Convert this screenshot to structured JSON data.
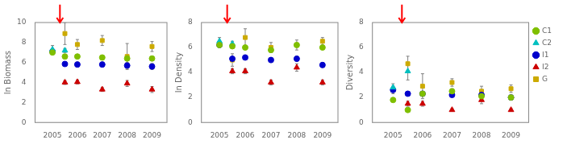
{
  "chart_data": [
    {
      "type": "scatter",
      "ylabel": "ln Biomass",
      "x": [
        2005,
        2005.5,
        2006,
        2007,
        2008,
        2009
      ],
      "xlim": [
        2004.3,
        2009.6
      ],
      "xticks": [
        2005,
        2006,
        2007,
        2008,
        2009
      ],
      "ylim": [
        0,
        10
      ],
      "yticks": [
        0,
        2,
        4,
        6,
        8,
        10
      ],
      "grid": false,
      "arrow": {
        "x": 2005.3,
        "color": "red"
      },
      "series": [
        {
          "name": "C1",
          "color": "#7fbf00",
          "marker": "circle",
          "values": [
            7.0,
            6.6,
            6.6,
            6.5,
            6.4,
            6.4
          ],
          "errors": [
            0.15,
            0.15,
            0.15,
            0.2,
            0.2,
            0.2
          ]
        },
        {
          "name": "C2",
          "color": "#00bfbf",
          "marker": "triangle",
          "values": [
            7.3,
            7.2,
            null,
            null,
            null,
            null
          ],
          "errors": [
            0.4,
            0.2,
            null,
            null,
            null,
            null
          ]
        },
        {
          "name": "I1",
          "color": "#0000cc",
          "marker": "circle",
          "values": [
            7.1,
            5.85,
            5.8,
            5.8,
            5.7,
            5.6
          ],
          "errors": [
            0.15,
            0.2,
            0.25,
            0.25,
            0.3,
            0.3
          ]
        },
        {
          "name": "I2",
          "color": "#cc0000",
          "marker": "triangle",
          "values": [
            null,
            4.0,
            4.05,
            3.3,
            3.9,
            3.3
          ],
          "errors": [
            null,
            0.2,
            0.2,
            0.2,
            0.3,
            0.3
          ]
        },
        {
          "name": "G",
          "color": "#ccaa00",
          "marker": "square",
          "values": [
            7.1,
            8.9,
            7.8,
            8.2,
            6.6,
            7.6
          ],
          "errors": [
            0.2,
            1.1,
            0.5,
            0.5,
            1.3,
            0.5
          ]
        }
      ]
    },
    {
      "type": "scatter",
      "ylabel": "ln Density",
      "x": [
        2005,
        2005.5,
        2006,
        2007,
        2008,
        2009
      ],
      "xlim": [
        2004.3,
        2009.6
      ],
      "xticks": [
        2005,
        2006,
        2007,
        2008,
        2009
      ],
      "ylim": [
        0,
        8
      ],
      "yticks": [
        0,
        2,
        4,
        6,
        8
      ],
      "grid": false,
      "arrow": {
        "x": 2005.3,
        "color": "red"
      },
      "series": [
        {
          "name": "C1",
          "color": "#7fbf00",
          "marker": "circle",
          "values": [
            6.2,
            6.1,
            6.0,
            5.8,
            6.2,
            6.0
          ],
          "errors": [
            0.15,
            0.15,
            0.15,
            0.15,
            0.15,
            0.15
          ]
        },
        {
          "name": "C2",
          "color": "#00bfbf",
          "marker": "triangle",
          "values": [
            6.5,
            6.3,
            null,
            null,
            null,
            null
          ],
          "errors": [
            0.3,
            0.2,
            null,
            null,
            null,
            null
          ]
        },
        {
          "name": "I1",
          "color": "#0000cc",
          "marker": "circle",
          "values": [
            6.2,
            5.1,
            5.2,
            5.0,
            5.1,
            4.6
          ],
          "errors": [
            0.15,
            0.15,
            0.2,
            0.2,
            0.2,
            0.2
          ]
        },
        {
          "name": "I2",
          "color": "#cc0000",
          "marker": "triangle",
          "values": [
            null,
            4.1,
            4.1,
            3.2,
            4.4,
            3.2
          ],
          "errors": [
            null,
            0.2,
            0.2,
            0.2,
            0.3,
            0.2
          ]
        },
        {
          "name": "G",
          "color": "#ccaa00",
          "marker": "square",
          "values": [
            6.3,
            5.0,
            6.8,
            6.0,
            6.2,
            6.5
          ],
          "errors": [
            0.15,
            0.5,
            0.7,
            0.4,
            0.4,
            0.3
          ]
        }
      ]
    },
    {
      "type": "scatter",
      "ylabel": "Diversity",
      "x": [
        2005,
        2005.5,
        2006,
        2007,
        2008,
        2009
      ],
      "xlim": [
        2004.3,
        2009.6
      ],
      "xticks": [
        2005,
        2006,
        2007,
        2008,
        2009
      ],
      "ylim": [
        0,
        8
      ],
      "yticks": [
        0,
        2,
        4,
        6,
        8
      ],
      "grid": false,
      "legend": "right",
      "arrow": {
        "x": 2005.3,
        "color": "red"
      },
      "series": [
        {
          "name": "C1",
          "color": "#7fbf00",
          "marker": "circle",
          "values": [
            1.8,
            1.0,
            2.3,
            2.5,
            2.1,
            2.0
          ],
          "errors": [
            0.15,
            0.15,
            0.2,
            0.2,
            0.15,
            0.2
          ]
        },
        {
          "name": "C2",
          "color": "#00bfbf",
          "marker": "triangle",
          "values": [
            2.8,
            4.1,
            null,
            null,
            null,
            null
          ],
          "errors": [
            0.3,
            0.7,
            null,
            null,
            null,
            null
          ]
        },
        {
          "name": "I1",
          "color": "#0000cc",
          "marker": "circle",
          "values": [
            2.6,
            2.3,
            2.3,
            2.2,
            2.2,
            2.0
          ],
          "errors": [
            0.15,
            0.1,
            0.15,
            0.15,
            0.1,
            0.15
          ]
        },
        {
          "name": "I2",
          "color": "#cc0000",
          "marker": "triangle",
          "values": [
            null,
            1.5,
            1.5,
            1.0,
            1.8,
            1.0
          ],
          "errors": [
            null,
            0.2,
            0.2,
            0.1,
            0.3,
            0.1
          ]
        },
        {
          "name": "G",
          "color": "#ccaa00",
          "marker": "square",
          "values": [
            2.6,
            4.7,
            2.9,
            3.2,
            2.5,
            2.7
          ],
          "errors": [
            0.3,
            0.6,
            1.0,
            0.3,
            0.4,
            0.3
          ]
        }
      ]
    }
  ]
}
